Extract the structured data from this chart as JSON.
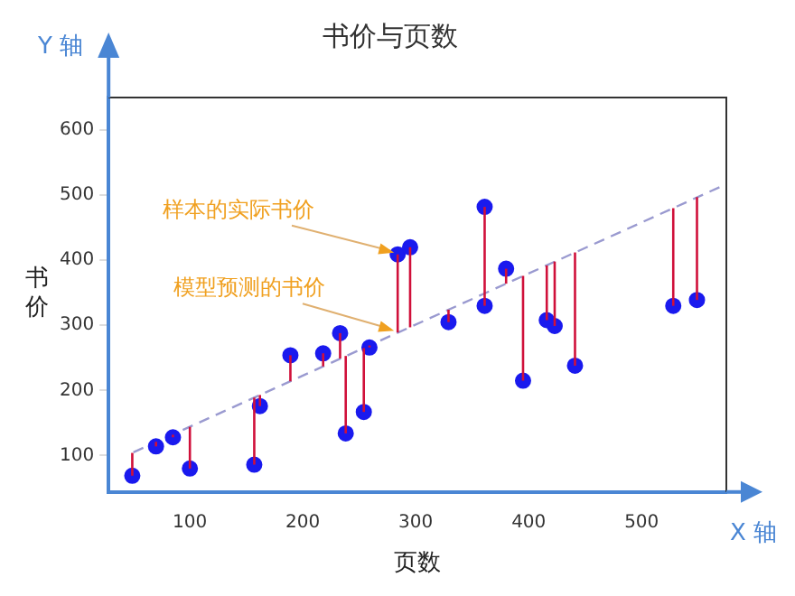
{
  "chart_data": {
    "type": "scatter",
    "title": "书价与页数",
    "xlabel": "页数",
    "ylabel": "书价",
    "xlim": [
      28,
      575
    ],
    "ylim": [
      44,
      650
    ],
    "xticks": [
      100,
      200,
      300,
      400,
      500
    ],
    "yticks": [
      100,
      200,
      300,
      400,
      500,
      600
    ],
    "grid": false,
    "legend": false,
    "marker": "circle",
    "series": [
      {
        "color": "#1a1aee",
        "x": [
          49,
          70,
          85,
          100,
          157,
          162,
          189,
          218,
          233,
          238,
          254,
          259,
          284,
          295,
          329,
          361,
          361,
          380,
          395,
          416,
          423,
          441,
          528,
          549
        ],
        "values": [
          69,
          114,
          128,
          80,
          86,
          176,
          254,
          257,
          288,
          134,
          167,
          266,
          409,
          420,
          305,
          482,
          330,
          387,
          215,
          308,
          299,
          238,
          330,
          339
        ],
        "errors": [
          [
            69,
            104
          ],
          [
            114,
            121
          ],
          [
            128,
            132
          ],
          [
            80,
            144
          ],
          [
            86,
            189
          ],
          [
            176,
            193
          ],
          [
            214,
            254
          ],
          [
            237,
            257
          ],
          [
            249,
            288
          ],
          [
            134,
            253
          ],
          [
            167,
            265
          ],
          [
            266,
            269
          ],
          [
            289,
            409
          ],
          [
            297,
            420
          ],
          [
            305,
            324
          ],
          [
            349,
            482
          ],
          [
            330,
            349
          ],
          [
            364,
            387
          ],
          [
            215,
            376
          ],
          [
            308,
            392
          ],
          [
            299,
            398
          ],
          [
            238,
            412
          ],
          [
            330,
            480
          ],
          [
            339,
            497
          ]
        ]
      },
      {
        "type": "line",
        "color": "#9a9ad0",
        "line_style": "dashed",
        "marker": "none",
        "x": [
          50,
          575
        ],
        "values": [
          105,
          517
        ]
      }
    ],
    "annotations": [
      {
        "text": "样本的实际书价",
        "x": 284,
        "y": 409
      },
      {
        "text": "模型预测的书价",
        "x": 284,
        "y": 289
      },
      "X 轴",
      "Y 轴"
    ]
  }
}
